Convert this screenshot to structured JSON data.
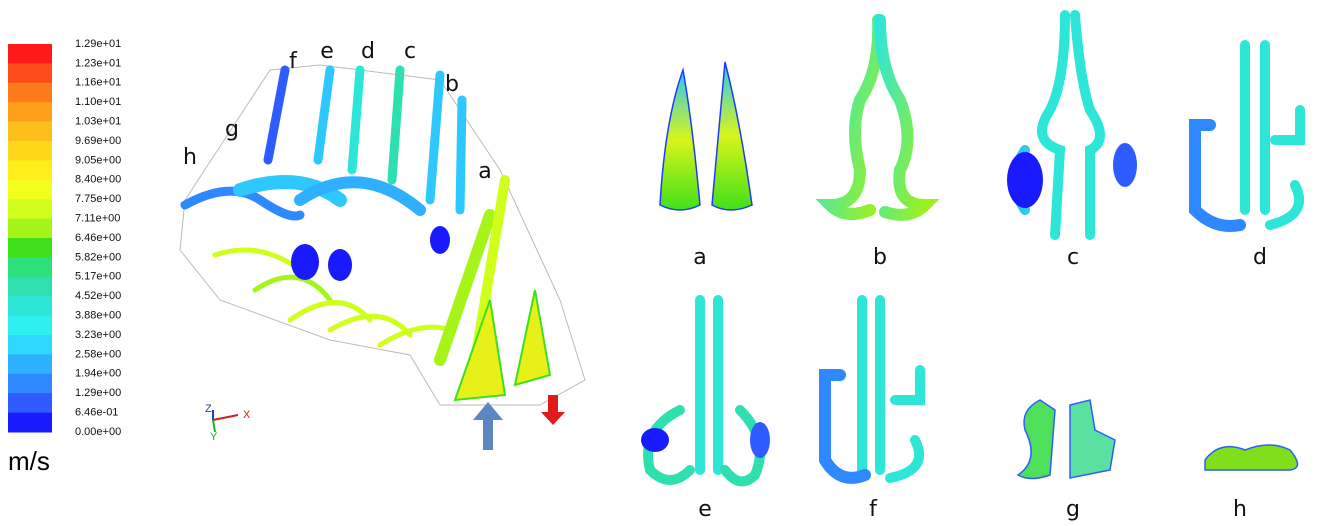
{
  "colorbar": {
    "labels": [
      "1.29e+01",
      "1.23e+01",
      "1.16e+01",
      "1.10e+01",
      "1.03e+01",
      "9.69e+00",
      "9.05e+00",
      "8.40e+00",
      "7.75e+00",
      "7.11e+00",
      "6.46e+00",
      "5.82e+00",
      "5.17e+00",
      "4.52e+00",
      "3.88e+00",
      "3.23e+00",
      "2.58e+00",
      "1.94e+00",
      "1.29e+00",
      "6.46e-01",
      "0.00e+00"
    ],
    "colors": [
      "#ff1a1a",
      "#ff4a1a",
      "#ff7a1a",
      "#ffa01a",
      "#ffbf1a",
      "#ffd81a",
      "#ffee1a",
      "#f2ff1a",
      "#cfff1a",
      "#a6f51a",
      "#3fe01a",
      "#2ee07a",
      "#2ee0b0",
      "#2ee6d8",
      "#2ef0f0",
      "#2ed8ff",
      "#2eb0ff",
      "#2e88ff",
      "#2e5cff",
      "#1a1aff"
    ],
    "unit": "m/s"
  },
  "view3d": {
    "labels": [
      "a",
      "b",
      "c",
      "d",
      "e",
      "f",
      "g",
      "h"
    ],
    "axes": [
      "Z",
      "Y",
      "X"
    ]
  },
  "sections": {
    "labels": [
      "a",
      "b",
      "c",
      "d",
      "e",
      "f",
      "g",
      "h"
    ]
  }
}
